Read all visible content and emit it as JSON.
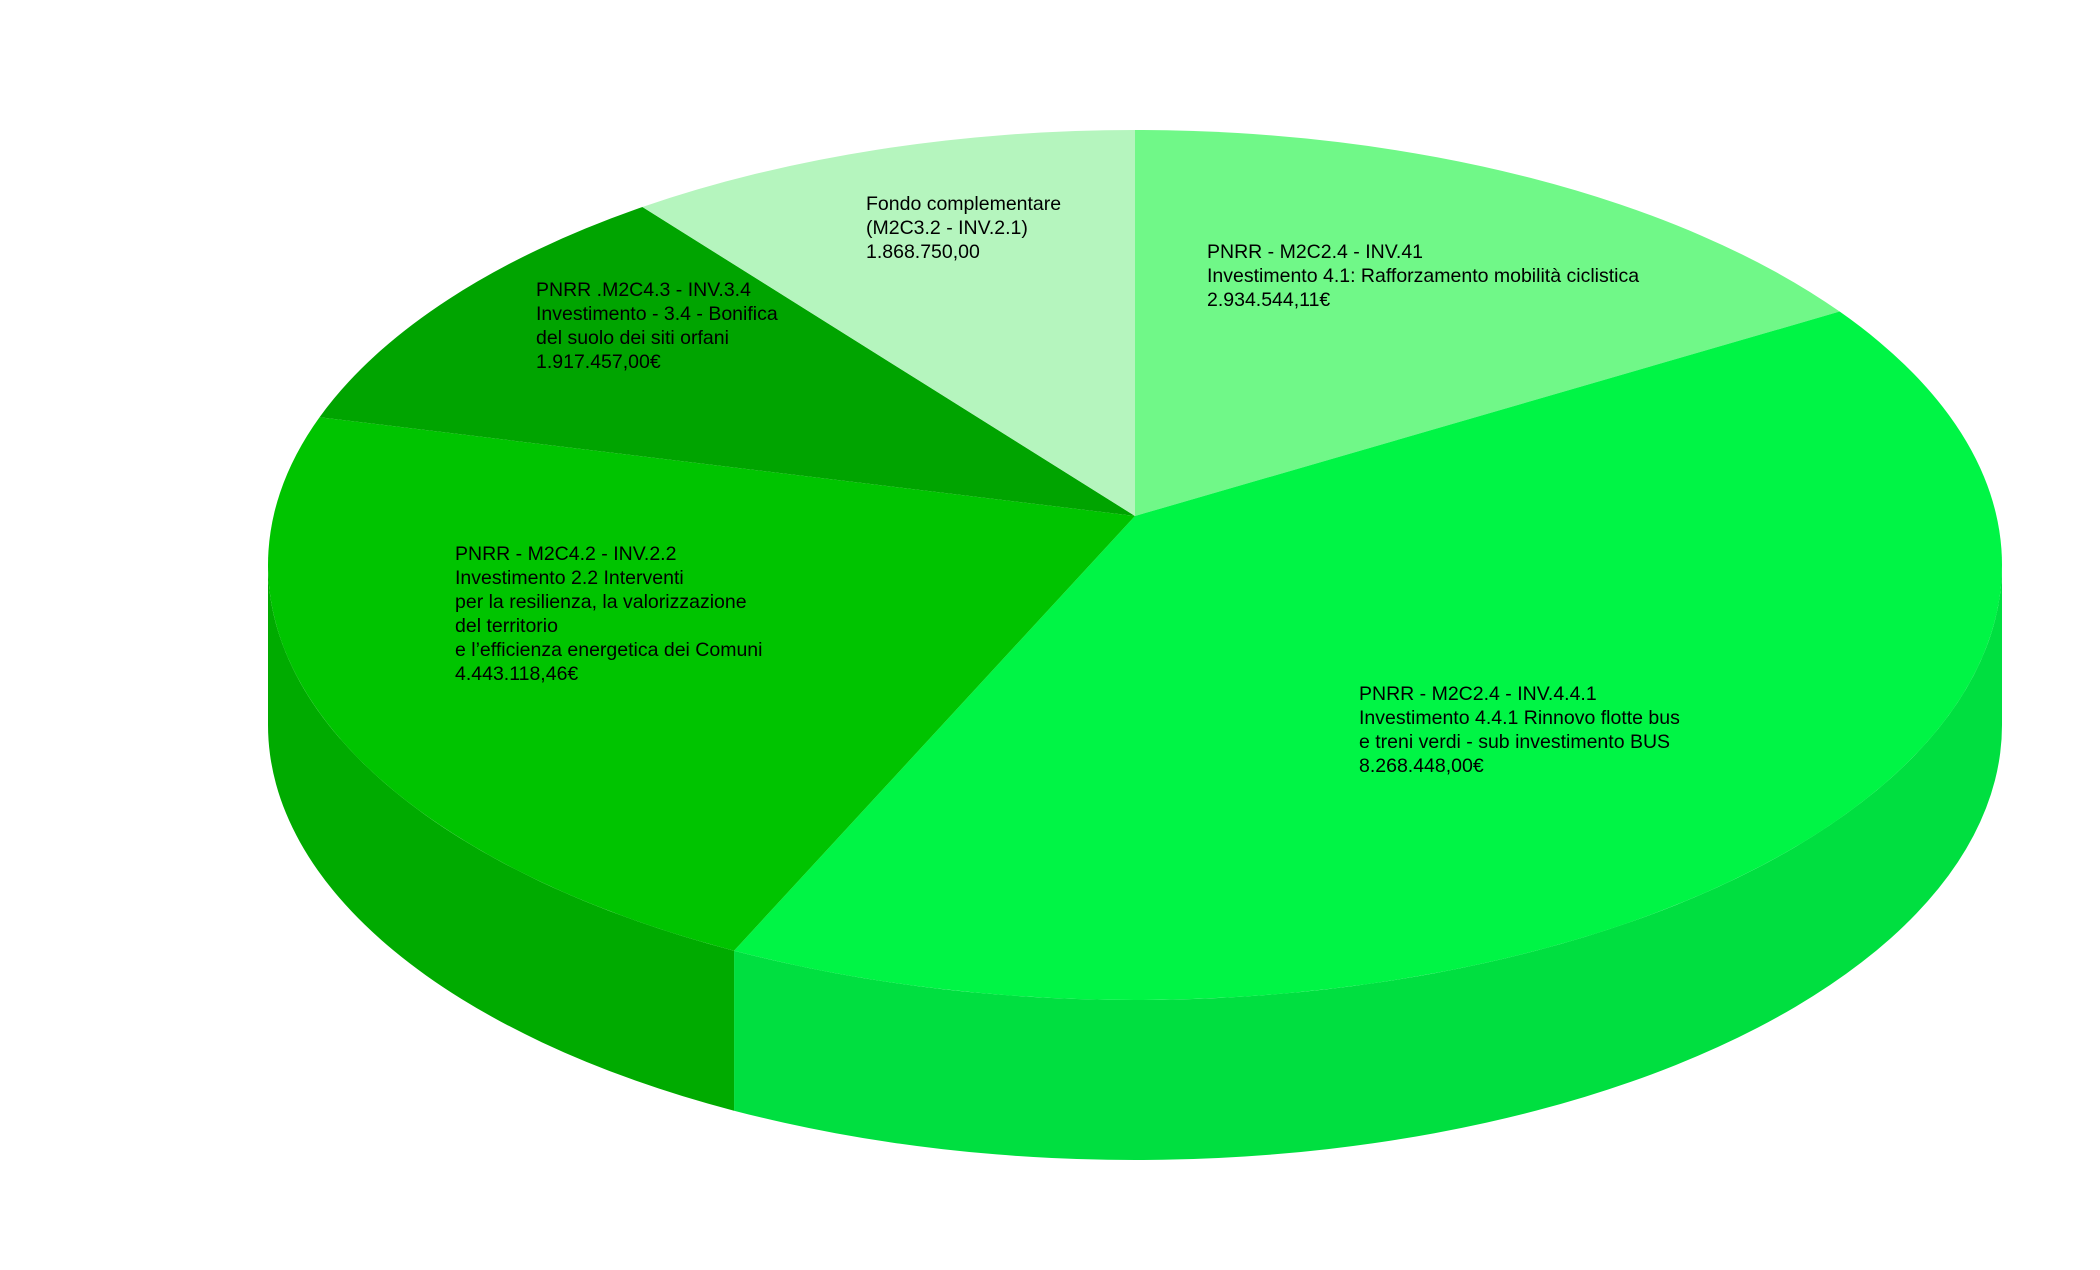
{
  "chart_data": {
    "type": "pie",
    "style": "3d",
    "start": "top",
    "direction": "clockwise",
    "legend": "none",
    "slices": [
      {
        "lines": [
          "PNRR - M2C2.4 - INV.41",
          "Investimento 4.1: Rafforzamento mobilità ciclistica",
          "2.934.544,11€"
        ],
        "value": 2934544.11,
        "color": "#70f888",
        "side_color": "#5fdc75"
      },
      {
        "lines": [
          "PNRR - M2C2.4 - INV.4.4.1",
          "Investimento 4.4.1 Rinnovo flotte bus",
          "e treni verdi - sub investimento BUS",
          "8.268.448,00€"
        ],
        "value": 8268448.0,
        "color": "#00f545",
        "side_color": "#00df40"
      },
      {
        "lines": [
          "PNRR - M2C4.2 - INV.2.2",
          "Investimento 2.2 Interventi",
          "per la resilienza, la valorizzazione",
          "del territorio",
          "e l’efficienza energetica dei Comuni",
          "4.443.118,46€"
        ],
        "value": 4443118.46,
        "color": "#00c400",
        "side_color": "#00ab00"
      },
      {
        "lines": [
          "PNRR .M2C4.3 - INV.3.4",
          "Investimento - 3.4 - Bonifica",
          "del suolo dei siti orfani",
          "1.917.457,00€"
        ],
        "value": 1917457.0,
        "color": "#00a400",
        "side_color": "#008f00"
      },
      {
        "lines": [
          "Fondo complementare",
          "(M2C3.2 - INV.2.1)",
          "1.868.750,00"
        ],
        "value": 1868750.0,
        "color": "#b5f5be",
        "side_color": "#a0e0a8"
      }
    ]
  }
}
